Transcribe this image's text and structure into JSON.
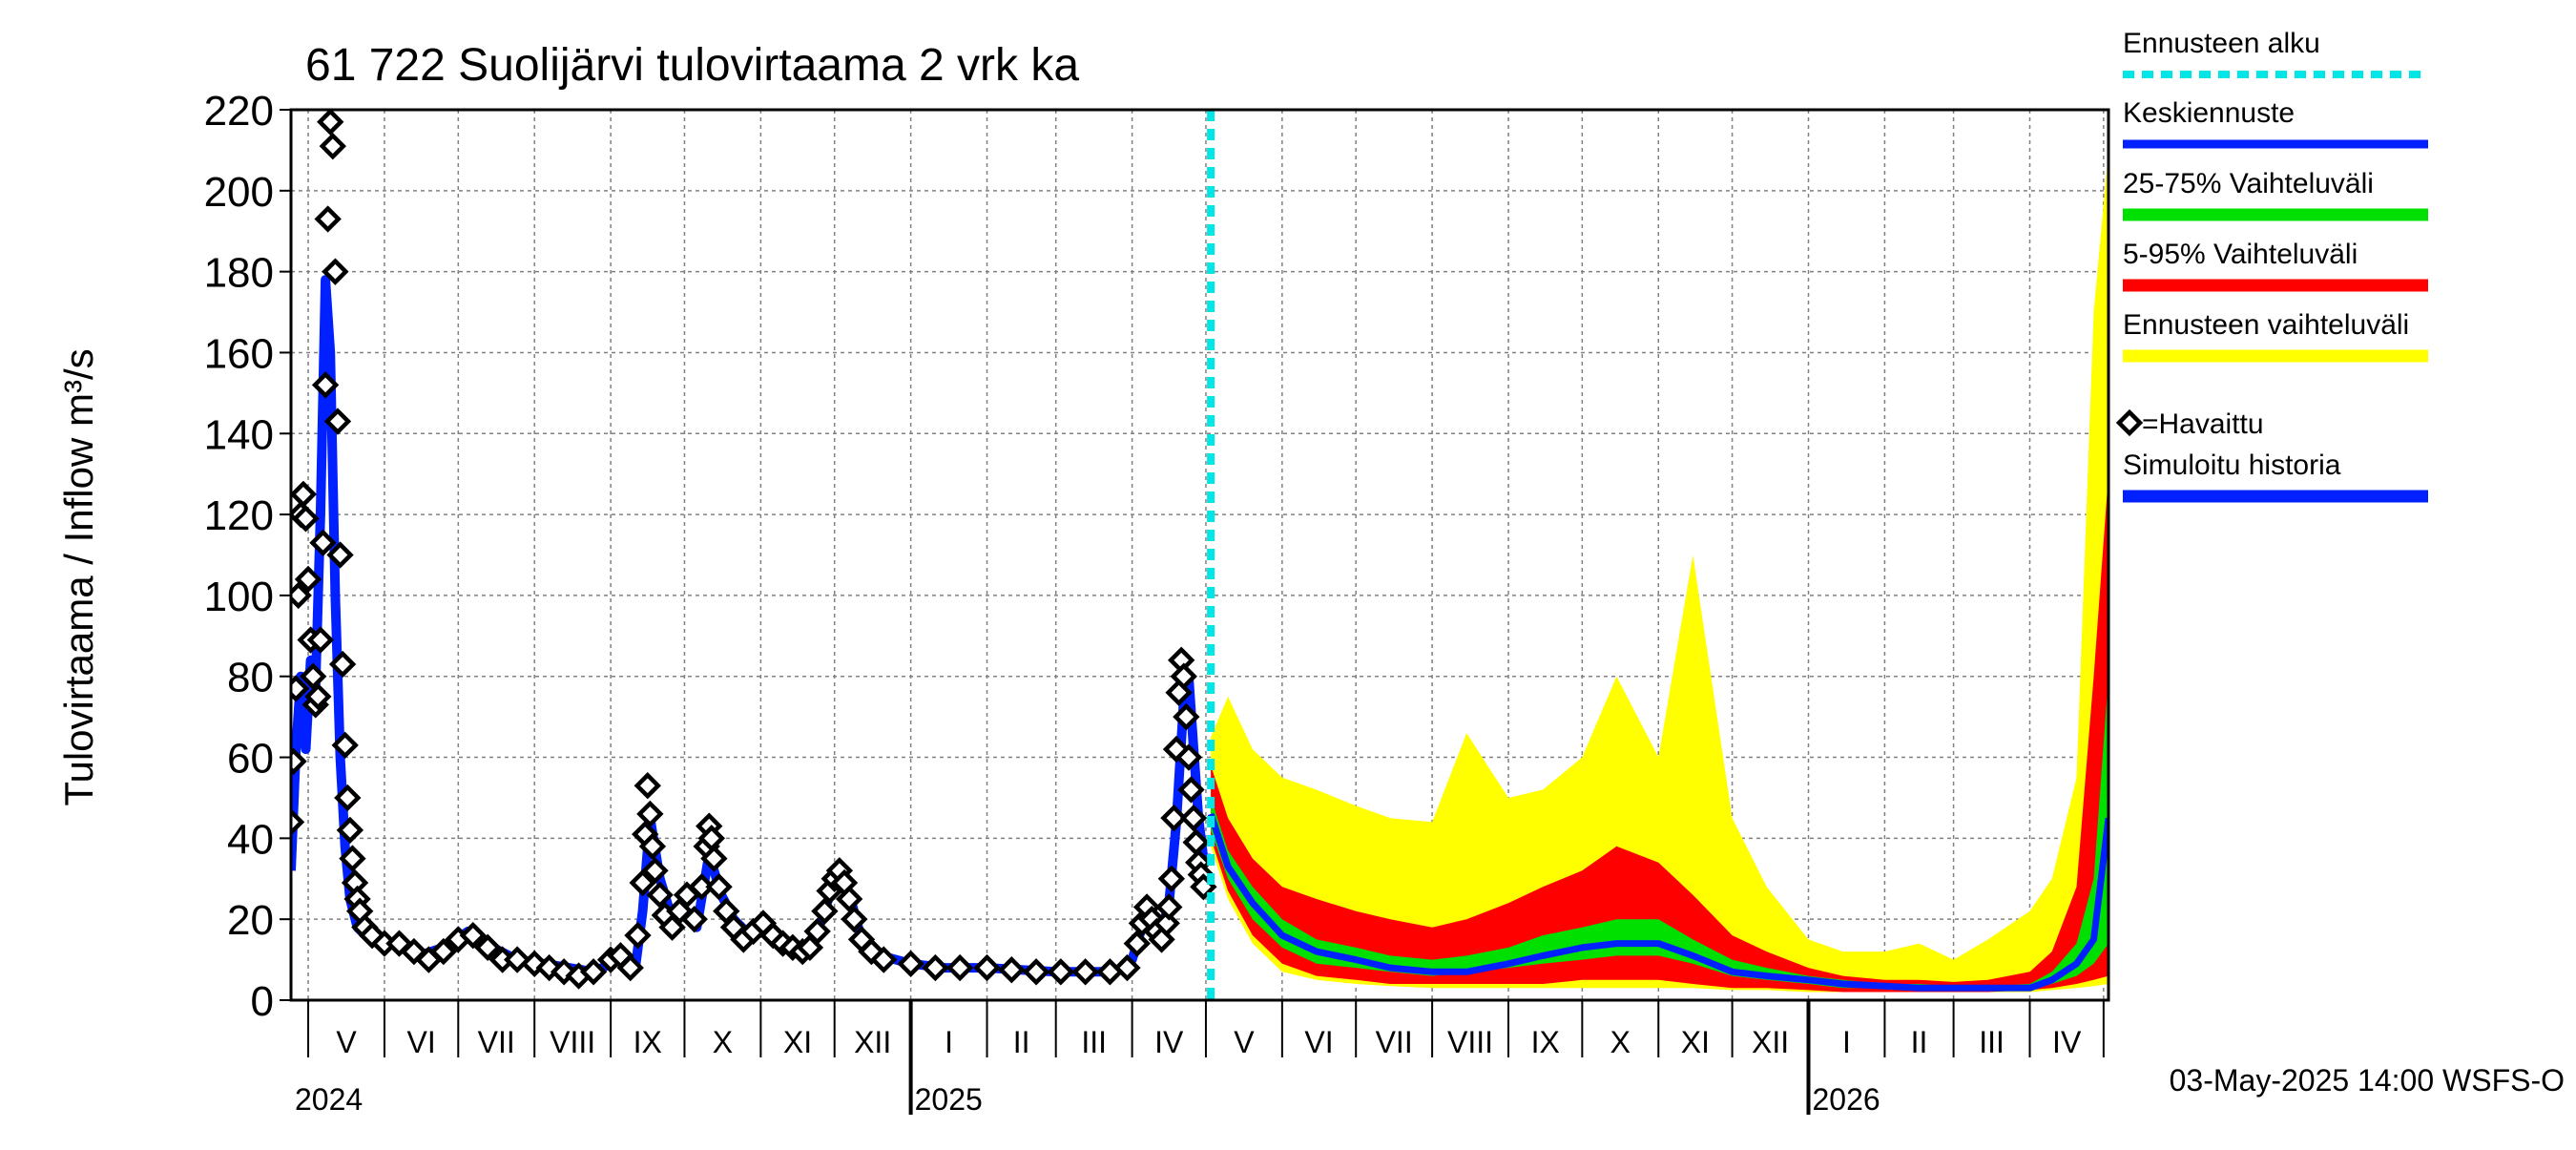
{
  "chart_data": {
    "type": "line",
    "title": "61 722 Suolijärvi tulovirtaama 2 vrk ka",
    "ylabel": "Tulovirtaama / Inflow    m³/s",
    "ylim": [
      0,
      220
    ],
    "yticks": [
      0,
      20,
      40,
      60,
      80,
      100,
      120,
      140,
      160,
      180,
      200,
      220
    ],
    "xlim": [
      "2024-04-24",
      "2026-05-03"
    ],
    "forecast_start": "2025-05-03",
    "months": [
      {
        "label": "V",
        "start": "2024-05-01"
      },
      {
        "label": "VI",
        "start": "2024-06-01"
      },
      {
        "label": "VII",
        "start": "2024-07-01"
      },
      {
        "label": "VIII",
        "start": "2024-08-01"
      },
      {
        "label": "IX",
        "start": "2024-09-01"
      },
      {
        "label": "X",
        "start": "2024-10-01"
      },
      {
        "label": "XI",
        "start": "2024-11-01"
      },
      {
        "label": "XII",
        "start": "2024-12-01"
      },
      {
        "label": "I",
        "start": "2025-01-01"
      },
      {
        "label": "II",
        "start": "2025-02-01"
      },
      {
        "label": "III",
        "start": "2025-03-01"
      },
      {
        "label": "IV",
        "start": "2025-04-01"
      },
      {
        "label": "V",
        "start": "2025-05-01"
      },
      {
        "label": "VI",
        "start": "2025-06-01"
      },
      {
        "label": "VII",
        "start": "2025-07-01"
      },
      {
        "label": "VIII",
        "start": "2025-08-01"
      },
      {
        "label": "IX",
        "start": "2025-09-01"
      },
      {
        "label": "X",
        "start": "2025-10-01"
      },
      {
        "label": "XI",
        "start": "2025-11-01"
      },
      {
        "label": "XII",
        "start": "2025-12-01"
      },
      {
        "label": "I",
        "start": "2026-01-01"
      },
      {
        "label": "II",
        "start": "2026-02-01"
      },
      {
        "label": "III",
        "start": "2026-03-01"
      },
      {
        "label": "IV",
        "start": "2026-04-01"
      },
      {
        "end": "2026-05-01"
      }
    ],
    "years": [
      {
        "label": "2024",
        "start": "2024-04-24"
      },
      {
        "label": "2025",
        "start": "2025-01-01"
      },
      {
        "label": "2026",
        "start": "2026-01-01"
      }
    ],
    "legend": {
      "forecast_start": "Ennusteen alku",
      "mean_forecast": "Keskiennuste",
      "range_25_75": "25-75% Vaihteluväli",
      "range_5_95": "5-95% Vaihteluväli",
      "forecast_range": "Ennusteen vaihteluväli",
      "observed": "=Havaittu",
      "simulated": "Simuloitu historia"
    },
    "colors": {
      "forecast_start": "#00e5e5",
      "mean_forecast": "#0020ff",
      "range_25_75": "#00e000",
      "range_5_95": "#ff0000",
      "forecast_range": "#ffff00",
      "simulated": "#0020ff",
      "observed": "#000000",
      "grid": "#808080"
    },
    "footer": "03-May-2025 14:00 WSFS-O",
    "simulated_history": [
      [
        "2024-04-24",
        32
      ],
      [
        "2024-04-26",
        62
      ],
      [
        "2024-04-28",
        80
      ],
      [
        "2024-04-30",
        62
      ],
      [
        "2024-05-02",
        84
      ],
      [
        "2024-05-04",
        78
      ],
      [
        "2024-05-06",
        120
      ],
      [
        "2024-05-08",
        178
      ],
      [
        "2024-05-10",
        160
      ],
      [
        "2024-05-12",
        100
      ],
      [
        "2024-05-14",
        60
      ],
      [
        "2024-05-16",
        38
      ],
      [
        "2024-05-18",
        25
      ],
      [
        "2024-05-21",
        18
      ],
      [
        "2024-05-26",
        15
      ],
      [
        "2024-06-05",
        14
      ],
      [
        "2024-06-15",
        11
      ],
      [
        "2024-06-25",
        13
      ],
      [
        "2024-07-05",
        17
      ],
      [
        "2024-07-15",
        13
      ],
      [
        "2024-07-25",
        10
      ],
      [
        "2024-08-05",
        9
      ],
      [
        "2024-08-15",
        8
      ],
      [
        "2024-08-25",
        7
      ],
      [
        "2024-09-01",
        9
      ],
      [
        "2024-09-06",
        12
      ],
      [
        "2024-09-11",
        8
      ],
      [
        "2024-09-14",
        22
      ],
      [
        "2024-09-17",
        45
      ],
      [
        "2024-09-21",
        30
      ],
      [
        "2024-09-26",
        20
      ],
      [
        "2024-10-01",
        22
      ],
      [
        "2024-10-06",
        18
      ],
      [
        "2024-10-11",
        36
      ],
      [
        "2024-10-16",
        26
      ],
      [
        "2024-10-21",
        20
      ],
      [
        "2024-10-26",
        17
      ],
      [
        "2024-11-01",
        19
      ],
      [
        "2024-11-06",
        16
      ],
      [
        "2024-11-11",
        14
      ],
      [
        "2024-11-16",
        13
      ],
      [
        "2024-11-21",
        14
      ],
      [
        "2024-11-26",
        20
      ],
      [
        "2024-11-30",
        28
      ],
      [
        "2024-12-04",
        30
      ],
      [
        "2024-12-08",
        24
      ],
      [
        "2024-12-12",
        15
      ],
      [
        "2024-12-20",
        11
      ],
      [
        "2025-01-01",
        9
      ],
      [
        "2025-01-15",
        8
      ],
      [
        "2025-02-01",
        8
      ],
      [
        "2025-02-15",
        7.5
      ],
      [
        "2025-03-01",
        7
      ],
      [
        "2025-03-15",
        7
      ],
      [
        "2025-03-25",
        7
      ],
      [
        "2025-04-01",
        10
      ],
      [
        "2025-04-05",
        18
      ],
      [
        "2025-04-09",
        22
      ],
      [
        "2025-04-13",
        17
      ],
      [
        "2025-04-16",
        24
      ],
      [
        "2025-04-19",
        44
      ],
      [
        "2025-04-22",
        74
      ],
      [
        "2025-04-24",
        80
      ],
      [
        "2025-04-26",
        62
      ],
      [
        "2025-04-28",
        45
      ],
      [
        "2025-04-30",
        35
      ],
      [
        "2025-05-03",
        35
      ]
    ],
    "observed": [
      [
        "2024-04-24",
        44
      ],
      [
        "2024-04-25",
        59
      ],
      [
        "2024-04-26",
        77
      ],
      [
        "2024-04-27",
        100
      ],
      [
        "2024-04-28",
        120
      ],
      [
        "2024-04-29",
        125
      ],
      [
        "2024-04-30",
        119
      ],
      [
        "2024-05-01",
        104
      ],
      [
        "2024-05-02",
        89
      ],
      [
        "2024-05-03",
        80
      ],
      [
        "2024-05-04",
        73
      ],
      [
        "2024-05-05",
        75
      ],
      [
        "2024-05-06",
        89
      ],
      [
        "2024-05-07",
        113
      ],
      [
        "2024-05-08",
        152
      ],
      [
        "2024-05-09",
        193
      ],
      [
        "2024-05-10",
        217
      ],
      [
        "2024-05-11",
        211
      ],
      [
        "2024-05-12",
        180
      ],
      [
        "2024-05-13",
        143
      ],
      [
        "2024-05-14",
        110
      ],
      [
        "2024-05-15",
        83
      ],
      [
        "2024-05-16",
        63
      ],
      [
        "2024-05-17",
        50
      ],
      [
        "2024-05-18",
        42
      ],
      [
        "2024-05-19",
        35
      ],
      [
        "2024-05-20",
        29
      ],
      [
        "2024-05-21",
        25
      ],
      [
        "2024-05-22",
        22
      ],
      [
        "2024-05-24",
        18
      ],
      [
        "2024-05-27",
        16
      ],
      [
        "2024-06-01",
        14
      ],
      [
        "2024-06-07",
        14
      ],
      [
        "2024-06-13",
        12
      ],
      [
        "2024-06-19",
        10
      ],
      [
        "2024-06-25",
        12
      ],
      [
        "2024-07-01",
        15
      ],
      [
        "2024-07-07",
        16
      ],
      [
        "2024-07-13",
        13
      ],
      [
        "2024-07-19",
        10
      ],
      [
        "2024-07-25",
        10
      ],
      [
        "2024-08-01",
        9
      ],
      [
        "2024-08-07",
        8
      ],
      [
        "2024-08-13",
        7
      ],
      [
        "2024-08-19",
        6
      ],
      [
        "2024-08-25",
        7
      ],
      [
        "2024-09-01",
        10
      ],
      [
        "2024-09-05",
        11
      ],
      [
        "2024-09-09",
        8
      ],
      [
        "2024-09-12",
        16
      ],
      [
        "2024-09-14",
        29
      ],
      [
        "2024-09-15",
        41
      ],
      [
        "2024-09-16",
        53
      ],
      [
        "2024-09-17",
        46
      ],
      [
        "2024-09-18",
        38
      ],
      [
        "2024-09-19",
        32
      ],
      [
        "2024-09-21",
        26
      ],
      [
        "2024-09-23",
        21
      ],
      [
        "2024-09-26",
        18
      ],
      [
        "2024-09-29",
        22
      ],
      [
        "2024-10-02",
        26
      ],
      [
        "2024-10-05",
        20
      ],
      [
        "2024-10-08",
        28
      ],
      [
        "2024-10-10",
        38
      ],
      [
        "2024-10-11",
        43
      ],
      [
        "2024-10-12",
        40
      ],
      [
        "2024-10-13",
        35
      ],
      [
        "2024-10-15",
        28
      ],
      [
        "2024-10-18",
        22
      ],
      [
        "2024-10-21",
        18
      ],
      [
        "2024-10-25",
        15
      ],
      [
        "2024-10-29",
        17
      ],
      [
        "2024-11-02",
        19
      ],
      [
        "2024-11-06",
        16
      ],
      [
        "2024-11-10",
        14
      ],
      [
        "2024-11-14",
        13
      ],
      [
        "2024-11-18",
        12
      ],
      [
        "2024-11-21",
        13
      ],
      [
        "2024-11-24",
        17
      ],
      [
        "2024-11-27",
        22
      ],
      [
        "2024-11-29",
        27
      ],
      [
        "2024-12-01",
        30
      ],
      [
        "2024-12-03",
        32
      ],
      [
        "2024-12-05",
        29
      ],
      [
        "2024-12-07",
        25
      ],
      [
        "2024-12-09",
        20
      ],
      [
        "2024-12-12",
        15
      ],
      [
        "2024-12-16",
        12
      ],
      [
        "2024-12-21",
        10
      ],
      [
        "2025-01-01",
        9
      ],
      [
        "2025-01-11",
        8
      ],
      [
        "2025-01-21",
        8
      ],
      [
        "2025-02-01",
        8
      ],
      [
        "2025-02-11",
        7.5
      ],
      [
        "2025-02-21",
        7
      ],
      [
        "2025-03-03",
        7
      ],
      [
        "2025-03-13",
        7
      ],
      [
        "2025-03-23",
        7
      ],
      [
        "2025-03-30",
        8
      ],
      [
        "2025-04-03",
        14
      ],
      [
        "2025-04-05",
        19
      ],
      [
        "2025-04-07",
        23
      ],
      [
        "2025-04-09",
        20
      ],
      [
        "2025-04-11",
        17
      ],
      [
        "2025-04-13",
        15
      ],
      [
        "2025-04-15",
        19
      ],
      [
        "2025-04-16",
        23
      ],
      [
        "2025-04-17",
        30
      ],
      [
        "2025-04-18",
        45
      ],
      [
        "2025-04-19",
        62
      ],
      [
        "2025-04-20",
        76
      ],
      [
        "2025-04-21",
        84
      ],
      [
        "2025-04-22",
        80
      ],
      [
        "2025-04-23",
        70
      ],
      [
        "2025-04-24",
        60
      ],
      [
        "2025-04-25",
        52
      ],
      [
        "2025-04-26",
        45
      ],
      [
        "2025-04-27",
        39
      ],
      [
        "2025-04-28",
        34
      ],
      [
        "2025-04-29",
        31
      ],
      [
        "2025-04-30",
        28
      ]
    ],
    "forecast_dates": [
      "2025-05-03",
      "2025-05-10",
      "2025-05-20",
      "2025-06-01",
      "2025-06-15",
      "2025-07-01",
      "2025-07-15",
      "2025-08-01",
      "2025-08-15",
      "2025-09-01",
      "2025-09-15",
      "2025-10-01",
      "2025-10-15",
      "2025-11-01",
      "2025-11-15",
      "2025-12-01",
      "2025-12-15",
      "2026-01-01",
      "2026-01-15",
      "2026-02-01",
      "2026-02-15",
      "2026-03-01",
      "2026-03-15",
      "2026-04-01",
      "2026-04-10",
      "2026-04-20",
      "2026-04-27",
      "2026-05-03"
    ],
    "forecast_min": [
      38,
      25,
      14,
      7,
      5,
      4,
      3.5,
      3,
      3,
      3,
      3,
      3,
      3,
      3,
      3,
      2.5,
      2.5,
      2,
      2,
      2,
      2,
      2,
      2,
      2,
      2.5,
      3,
      3.5,
      4
    ],
    "forecast_p5": [
      40,
      27,
      16,
      9,
      6,
      5,
      4,
      4,
      4,
      4,
      4,
      5,
      5,
      5,
      4,
      3,
      3,
      2.5,
      2,
      2,
      2,
      2,
      2,
      2.5,
      3,
      4,
      5,
      6
    ],
    "forecast_p25": [
      42,
      30,
      20,
      13,
      9,
      8,
      7,
      6,
      7,
      8,
      9,
      10,
      11,
      11,
      9,
      6,
      5,
      4,
      3,
      3,
      2.5,
      2.5,
      2.5,
      3,
      4,
      6,
      9,
      14
    ],
    "forecast_mean": [
      46,
      33,
      24,
      16,
      12,
      10,
      8,
      7,
      7,
      9,
      11,
      13,
      14,
      14,
      11,
      7,
      6,
      5,
      4,
      3.5,
      3,
      3,
      3,
      3,
      5,
      9,
      15,
      45
    ],
    "forecast_p75": [
      50,
      37,
      28,
      20,
      15,
      13,
      11,
      10,
      11,
      13,
      16,
      18,
      20,
      20,
      15,
      10,
      8,
      6,
      5,
      4,
      4,
      3.5,
      3.5,
      4,
      7,
      14,
      30,
      80
    ],
    "forecast_p95": [
      58,
      45,
      35,
      28,
      25,
      22,
      20,
      18,
      20,
      24,
      28,
      32,
      38,
      34,
      26,
      16,
      12,
      8,
      6,
      5,
      5,
      4.5,
      5,
      7,
      12,
      28,
      80,
      130
    ],
    "forecast_max": [
      65,
      75,
      62,
      55,
      52,
      48,
      45,
      44,
      66,
      50,
      52,
      60,
      80,
      60,
      110,
      45,
      28,
      15,
      12,
      12,
      14,
      10,
      15,
      22,
      30,
      55,
      170,
      210
    ]
  }
}
